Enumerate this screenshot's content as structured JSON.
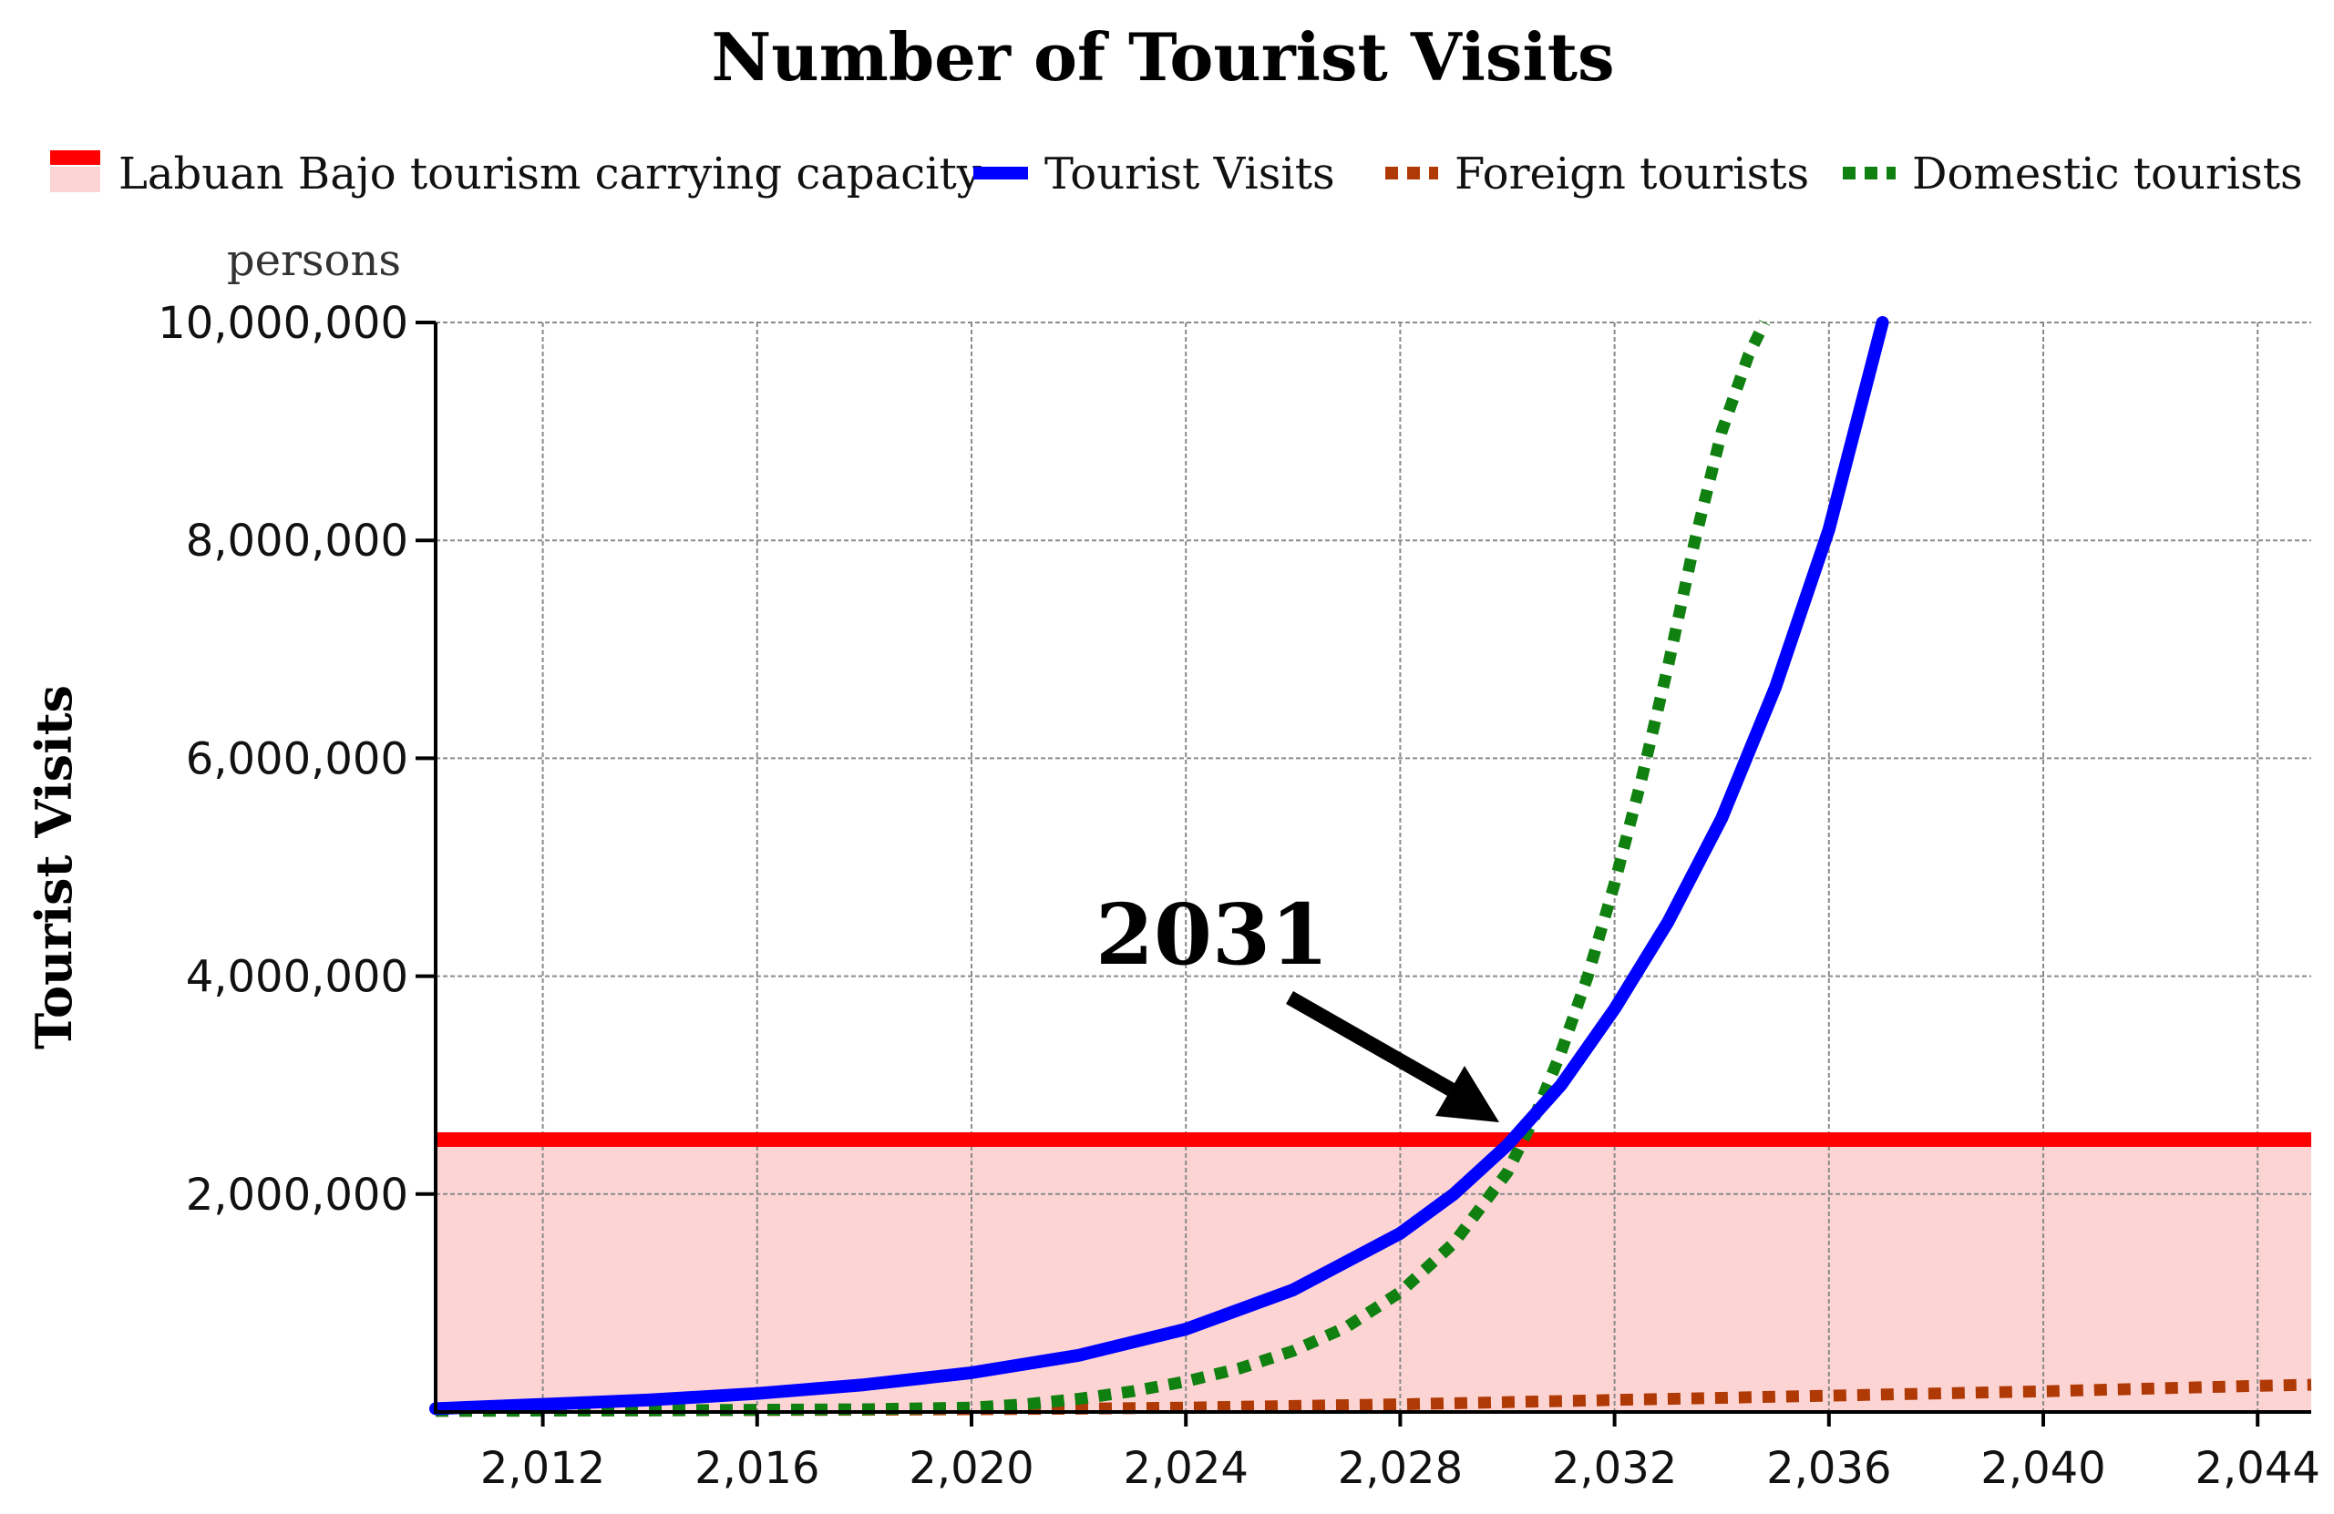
{
  "chart_data": {
    "type": "line",
    "title": "Number of Tourist Visits",
    "unit_label": "persons",
    "ylabel": "Tourist Visits",
    "xlabel": "",
    "xlim": [
      2010,
      2045
    ],
    "ylim": [
      0,
      10000000
    ],
    "x_ticks": [
      2012,
      2016,
      2020,
      2024,
      2028,
      2032,
      2036,
      2040,
      2044
    ],
    "x_tick_labels": [
      "2,012",
      "2,016",
      "2,020",
      "2,024",
      "2,028",
      "2,032",
      "2,036",
      "2,040",
      "2,044"
    ],
    "y_ticks": [
      2000000,
      4000000,
      6000000,
      8000000,
      10000000
    ],
    "y_tick_labels": [
      "2,000,000",
      "4,000,000",
      "6,000,000",
      "8,000,000",
      "10,000,000"
    ],
    "grid": true,
    "legend_position": "top",
    "capacity": {
      "name": "Labuan Bajo tourism carrying capacity",
      "value": 2500000,
      "line_color": "#ff0000",
      "fill_color": "#fdd4d4"
    },
    "series": [
      {
        "name": "Tourist Visits",
        "color": "#0000ff",
        "style": "solid",
        "x": [
          2010,
          2012,
          2014,
          2016,
          2018,
          2020,
          2022,
          2024,
          2026,
          2028,
          2029,
          2030,
          2031,
          2032,
          2033,
          2034,
          2035,
          2036,
          2037
        ],
        "values": [
          30000,
          70000,
          110000,
          170000,
          250000,
          360000,
          520000,
          760000,
          1120000,
          1640000,
          2000000,
          2450000,
          3000000,
          3700000,
          4500000,
          5450000,
          6650000,
          8100000,
          10000000
        ]
      },
      {
        "name": "Foreign tourists",
        "color": "#b03a05",
        "style": "dotted",
        "x": [
          2010,
          2014,
          2018,
          2020,
          2022,
          2024,
          2028,
          2032,
          2036,
          2040,
          2044,
          2045
        ],
        "values": [
          10000,
          15000,
          20000,
          25000,
          30000,
          40000,
          70000,
          110000,
          150000,
          190000,
          240000,
          250000
        ]
      },
      {
        "name": "Domestic tourists",
        "color": "#108010",
        "style": "dotted",
        "x": [
          2010,
          2014,
          2018,
          2020,
          2021,
          2022,
          2023,
          2024,
          2025,
          2026,
          2027,
          2028,
          2029,
          2030,
          2030.5,
          2031,
          2031.5,
          2032,
          2032.5,
          2033,
          2033.5,
          2034,
          2034.5,
          2034.8
        ],
        "values": [
          10000,
          15000,
          25000,
          40000,
          70000,
          120000,
          190000,
          280000,
          400000,
          560000,
          780000,
          1100000,
          1550000,
          2200000,
          2700000,
          3300000,
          4000000,
          4850000,
          5800000,
          6850000,
          8000000,
          9000000,
          9700000,
          10000000
        ]
      }
    ],
    "annotation": {
      "text": "2031",
      "x": 2031,
      "y": 2500000
    }
  }
}
